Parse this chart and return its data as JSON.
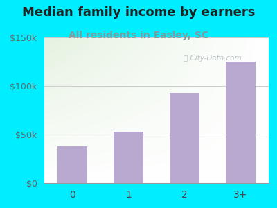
{
  "title": "Median family income by earners",
  "subtitle": "All residents in Easley, SC",
  "categories": [
    "0",
    "1",
    "2",
    "3+"
  ],
  "values": [
    38000,
    53000,
    93000,
    125000
  ],
  "bar_color": "#b9a9d0",
  "background_outer": "#00eeff",
  "ylim": [
    0,
    150000
  ],
  "yticks": [
    0,
    50000,
    100000,
    150000
  ],
  "ytick_labels": [
    "$0",
    "$50k",
    "$100k",
    "$150k"
  ],
  "title_fontsize": 13,
  "subtitle_fontsize": 10,
  "subtitle_color": "#7a9ea0",
  "title_color": "#222222",
  "watermark": "City-Data.com",
  "grid_color": "#cccccc",
  "plot_bg_colors": [
    "#d8edd8",
    "#f0f8ee",
    "#ffffff"
  ]
}
